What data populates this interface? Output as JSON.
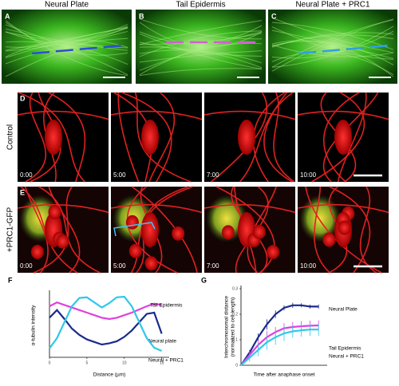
{
  "figure": {
    "top_panels": [
      {
        "letter": "A",
        "title": "Neural Plate"
      },
      {
        "letter": "B",
        "title": "Tail Epidermis"
      },
      {
        "letter": "C",
        "title": "Neural Plate + PRC1"
      }
    ],
    "row_d": {
      "letter": "D",
      "label": "Control"
    },
    "row_e": {
      "letter": "E",
      "label": "+PRC1-GFP"
    },
    "timestamps": [
      "0:00",
      "5:00",
      "7:00",
      "10:00"
    ]
  },
  "chart_data": [
    {
      "type": "line",
      "panel": "F",
      "x_label": "Distance (µm)",
      "y_label": "α-tubulin intensity",
      "x": [
        0,
        1,
        2,
        3,
        4,
        5,
        6,
        7,
        8,
        9,
        10,
        11,
        12,
        13,
        14,
        15
      ],
      "xlim": [
        0,
        16
      ],
      "xticks": [
        0,
        5,
        10,
        15
      ],
      "ylim": [
        0,
        100
      ],
      "series": [
        {
          "name": "Tail Epidermis",
          "color": "#e040e0",
          "values": [
            80,
            86,
            82,
            78,
            74,
            70,
            66,
            62,
            60,
            62,
            66,
            70,
            75,
            80,
            84,
            82
          ]
        },
        {
          "name": "Neural plate",
          "color": "#1a2a8c",
          "values": [
            62,
            74,
            60,
            45,
            35,
            28,
            24,
            20,
            22,
            25,
            32,
            42,
            55,
            68,
            70,
            37
          ]
        },
        {
          "name": "Neural + PRC1",
          "color": "#30c8e8",
          "values": [
            14,
            30,
            55,
            80,
            93,
            94,
            86,
            78,
            85,
            94,
            95,
            80,
            55,
            30,
            15,
            10
          ]
        }
      ]
    },
    {
      "type": "line",
      "panel": "G",
      "x_label": "Time after anaphase onset",
      "y_label": [
        "Interchromosomal distance",
        "(normalized to cell length)"
      ],
      "x": [
        0,
        1,
        2,
        3,
        4,
        5,
        6,
        7,
        8,
        9
      ],
      "xlim": [
        0,
        10
      ],
      "ylim": [
        0,
        0.3
      ],
      "yticks": [
        0,
        0.1,
        0.2,
        0.3
      ],
      "series": [
        {
          "name": "Neural Plate",
          "color": "#1a2a8c",
          "values": [
            0,
            0.05,
            0.11,
            0.16,
            0.2,
            0.225,
            0.235,
            0.235,
            0.23,
            0.23
          ],
          "errors": [
            0,
            0.01,
            0.015,
            0.02,
            0.015,
            0.01,
            0.01,
            0.008,
            0.008,
            0.008
          ]
        },
        {
          "name": "Tail Epidermis",
          "color": "#e040e0",
          "values": [
            0,
            0.04,
            0.08,
            0.11,
            0.13,
            0.145,
            0.15,
            0.153,
            0.155,
            0.156
          ],
          "errors": [
            0,
            0.015,
            0.02,
            0.025,
            0.02,
            0.02,
            0.02,
            0.02,
            0.02,
            0.02
          ]
        },
        {
          "name": "Neural + PRC1",
          "color": "#30c8e8",
          "values": [
            0,
            0.03,
            0.06,
            0.09,
            0.11,
            0.125,
            0.133,
            0.137,
            0.14,
            0.14
          ],
          "errors": [
            0,
            0.015,
            0.025,
            0.03,
            0.03,
            0.03,
            0.025,
            0.025,
            0.025,
            0.025
          ]
        }
      ]
    }
  ]
}
